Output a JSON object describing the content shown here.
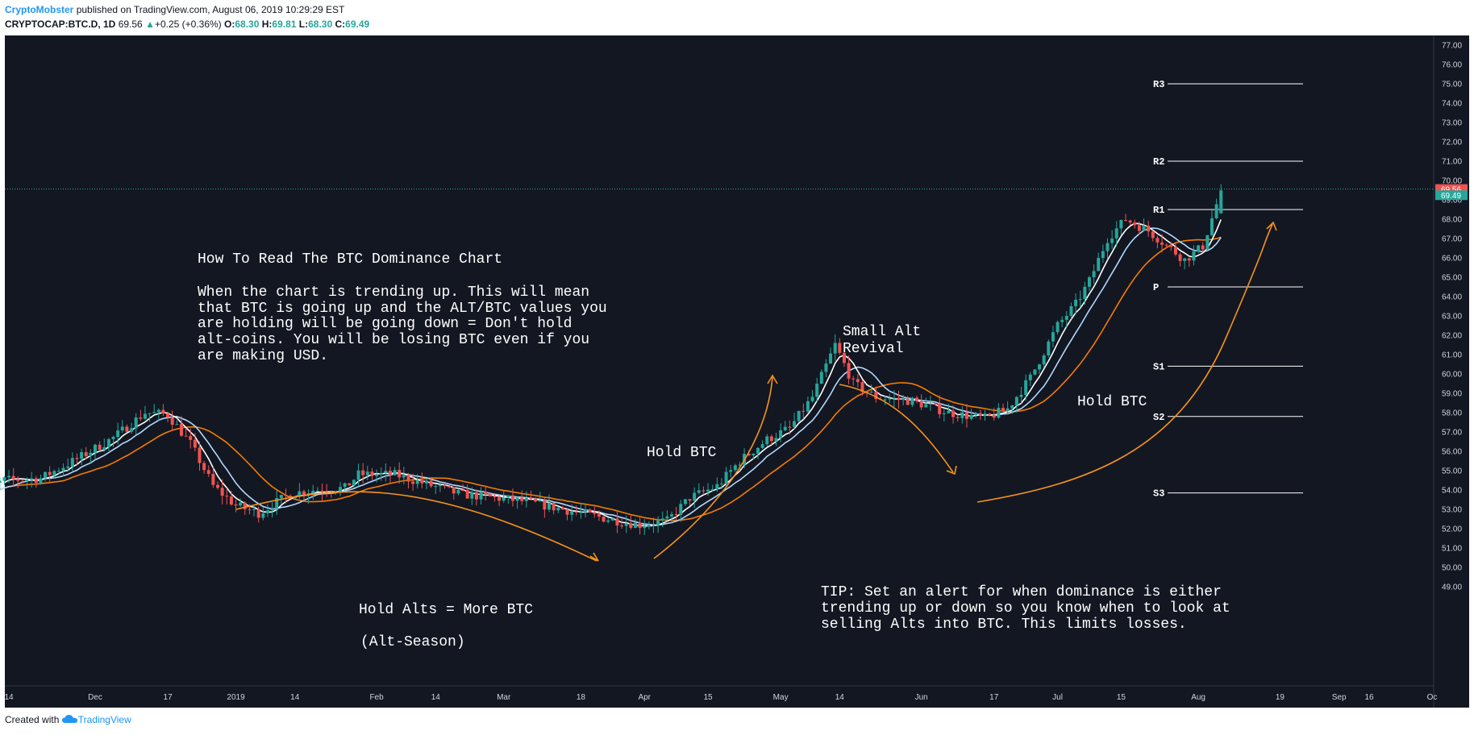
{
  "header": {
    "author": "CryptoMobster",
    "published_text": "published on TradingView.com, August 06, 2019 10:29:29 EST",
    "symbol": "CRYPTOCAP:BTC.D, 1D",
    "price": "69.56",
    "change": "+0.25 (+0.36%)",
    "o_label": "O:",
    "o_value": "68.30",
    "h_label": "H:",
    "h_value": "69.81",
    "l_label": "L:",
    "l_value": "68.30",
    "c_label": "C:",
    "c_value": "69.49"
  },
  "footer": {
    "created_with": "Created with",
    "brand": "TradingView"
  },
  "colors": {
    "background": "#131722",
    "up": "#26a69a",
    "down": "#ef5350",
    "ma_fast": "#ffffff",
    "ma_mid": "#b3d9ff",
    "ma_slow": "#f57c00",
    "arrow": "#f7931a",
    "last_price_bg": "#ef5350",
    "close_bg": "#26a69a"
  },
  "icons": {
    "tradingview": "tradingview-cloud-icon",
    "up_arrow": "triangle-up-icon"
  },
  "price_axis": {
    "ticks": [
      "77.00",
      "76.00",
      "75.00",
      "74.00",
      "73.00",
      "72.00",
      "71.00",
      "70.00",
      "69.00",
      "68.00",
      "67.00",
      "66.00",
      "65.00",
      "64.00",
      "63.00",
      "62.00",
      "61.00",
      "60.00",
      "59.00",
      "58.00",
      "57.00",
      "56.00",
      "55.00",
      "54.00",
      "53.00",
      "52.00",
      "51.00",
      "50.00",
      "49.00"
    ],
    "last_price": "69.56",
    "close_price": "69.49"
  },
  "time_axis": {
    "ticks": [
      {
        "label": "14",
        "day": -19
      },
      {
        "label": "Dec",
        "day": 0
      },
      {
        "label": "17",
        "day": 16
      },
      {
        "label": "2019",
        "day": 31
      },
      {
        "label": "14",
        "day": 44
      },
      {
        "label": "Feb",
        "day": 62
      },
      {
        "label": "14",
        "day": 75
      },
      {
        "label": "Mar",
        "day": 90
      },
      {
        "label": "18",
        "day": 107
      },
      {
        "label": "Apr",
        "day": 121
      },
      {
        "label": "15",
        "day": 135
      },
      {
        "label": "May",
        "day": 151
      },
      {
        "label": "14",
        "day": 164
      },
      {
        "label": "Jun",
        "day": 182
      },
      {
        "label": "17",
        "day": 198
      },
      {
        "label": "Jul",
        "day": 212
      },
      {
        "label": "15",
        "day": 226
      },
      {
        "label": "Aug",
        "day": 243
      },
      {
        "label": "19",
        "day": 261
      },
      {
        "label": "Sep",
        "day": 274
      },
      {
        "label": "16",
        "day": 301
      },
      {
        "label": "Oc",
        "day": 304
      }
    ]
  },
  "pivot_levels": [
    {
      "label": "R3",
      "price": 75.0
    },
    {
      "label": "R2",
      "price": 71.0
    },
    {
      "label": "R1",
      "price": 68.5
    },
    {
      "label": "P",
      "price": 64.5
    },
    {
      "label": "S1",
      "price": 60.4
    },
    {
      "label": "S2",
      "price": 57.8
    },
    {
      "label": "S3",
      "price": 53.85
    }
  ],
  "annotations": {
    "title": "How To Read The BTC Dominance Chart",
    "desc_lines": [
      "When the chart is trending up. This will mean",
      "that BTC is going up and the ALT/BTC values you",
      "are holding will be going down = Don't hold",
      "alt-coins. You will be losing BTC even if you",
      "are making USD."
    ],
    "hold_alts": "Hold Alts = More BTC",
    "alt_season": "(Alt-Season)",
    "hold_btc_1": "Hold BTC",
    "small_alt_1": "Small Alt",
    "small_alt_2": "Revival",
    "hold_btc_2": "Hold BTC",
    "tip_lines": [
      "TIP: Set an alert for when dominance is either",
      "trending up or down so you know when to look at",
      "selling Alts into BTC. This limits losses."
    ]
  },
  "chart_data": {
    "type": "candlestick",
    "symbol": "CRYPTOCAP:BTC.D",
    "interval": "1D",
    "ylim": [
      49,
      77.5
    ],
    "x_unit": "days since Dec 1, 2018",
    "anchors": [
      {
        "day": -27,
        "price": 53.7
      },
      {
        "day": -20,
        "price": 54.5
      },
      {
        "day": -12,
        "price": 54.6
      },
      {
        "day": -4,
        "price": 55.6
      },
      {
        "day": 4,
        "price": 56.7
      },
      {
        "day": 11,
        "price": 58.0
      },
      {
        "day": 16,
        "price": 57.9
      },
      {
        "day": 21,
        "price": 56.4
      },
      {
        "day": 26,
        "price": 54.2
      },
      {
        "day": 31,
        "price": 53.2
      },
      {
        "day": 36,
        "price": 52.8
      },
      {
        "day": 43,
        "price": 53.8
      },
      {
        "day": 48,
        "price": 54.0
      },
      {
        "day": 55,
        "price": 54.1
      },
      {
        "day": 58,
        "price": 54.8
      },
      {
        "day": 66,
        "price": 54.8
      },
      {
        "day": 73,
        "price": 54.3
      },
      {
        "day": 80,
        "price": 53.8
      },
      {
        "day": 88,
        "price": 53.6
      },
      {
        "day": 95,
        "price": 53.4
      },
      {
        "day": 105,
        "price": 52.9
      },
      {
        "day": 113,
        "price": 52.5
      },
      {
        "day": 120,
        "price": 52.2
      },
      {
        "day": 126,
        "price": 52.4
      },
      {
        "day": 131,
        "price": 53.6
      },
      {
        "day": 137,
        "price": 54.2
      },
      {
        "day": 142,
        "price": 55.5
      },
      {
        "day": 148,
        "price": 56.6
      },
      {
        "day": 153,
        "price": 57.2
      },
      {
        "day": 158,
        "price": 58.8
      },
      {
        "day": 163,
        "price": 61.5
      },
      {
        "day": 167,
        "price": 59.5
      },
      {
        "day": 172,
        "price": 58.8
      },
      {
        "day": 180,
        "price": 58.6
      },
      {
        "day": 188,
        "price": 58.0
      },
      {
        "day": 196,
        "price": 57.7
      },
      {
        "day": 201,
        "price": 58.2
      },
      {
        "day": 206,
        "price": 59.8
      },
      {
        "day": 212,
        "price": 62.5
      },
      {
        "day": 216,
        "price": 63.6
      },
      {
        "day": 219,
        "price": 64.8
      },
      {
        "day": 223,
        "price": 67.0
      },
      {
        "day": 227,
        "price": 68.0
      },
      {
        "day": 232,
        "price": 67.4
      },
      {
        "day": 240,
        "price": 65.9
      },
      {
        "day": 244,
        "price": 66.6
      },
      {
        "day": 248,
        "price": 69.49
      }
    ],
    "last": {
      "open": 68.3,
      "high": 69.81,
      "low": 68.3,
      "close": 69.49
    }
  }
}
